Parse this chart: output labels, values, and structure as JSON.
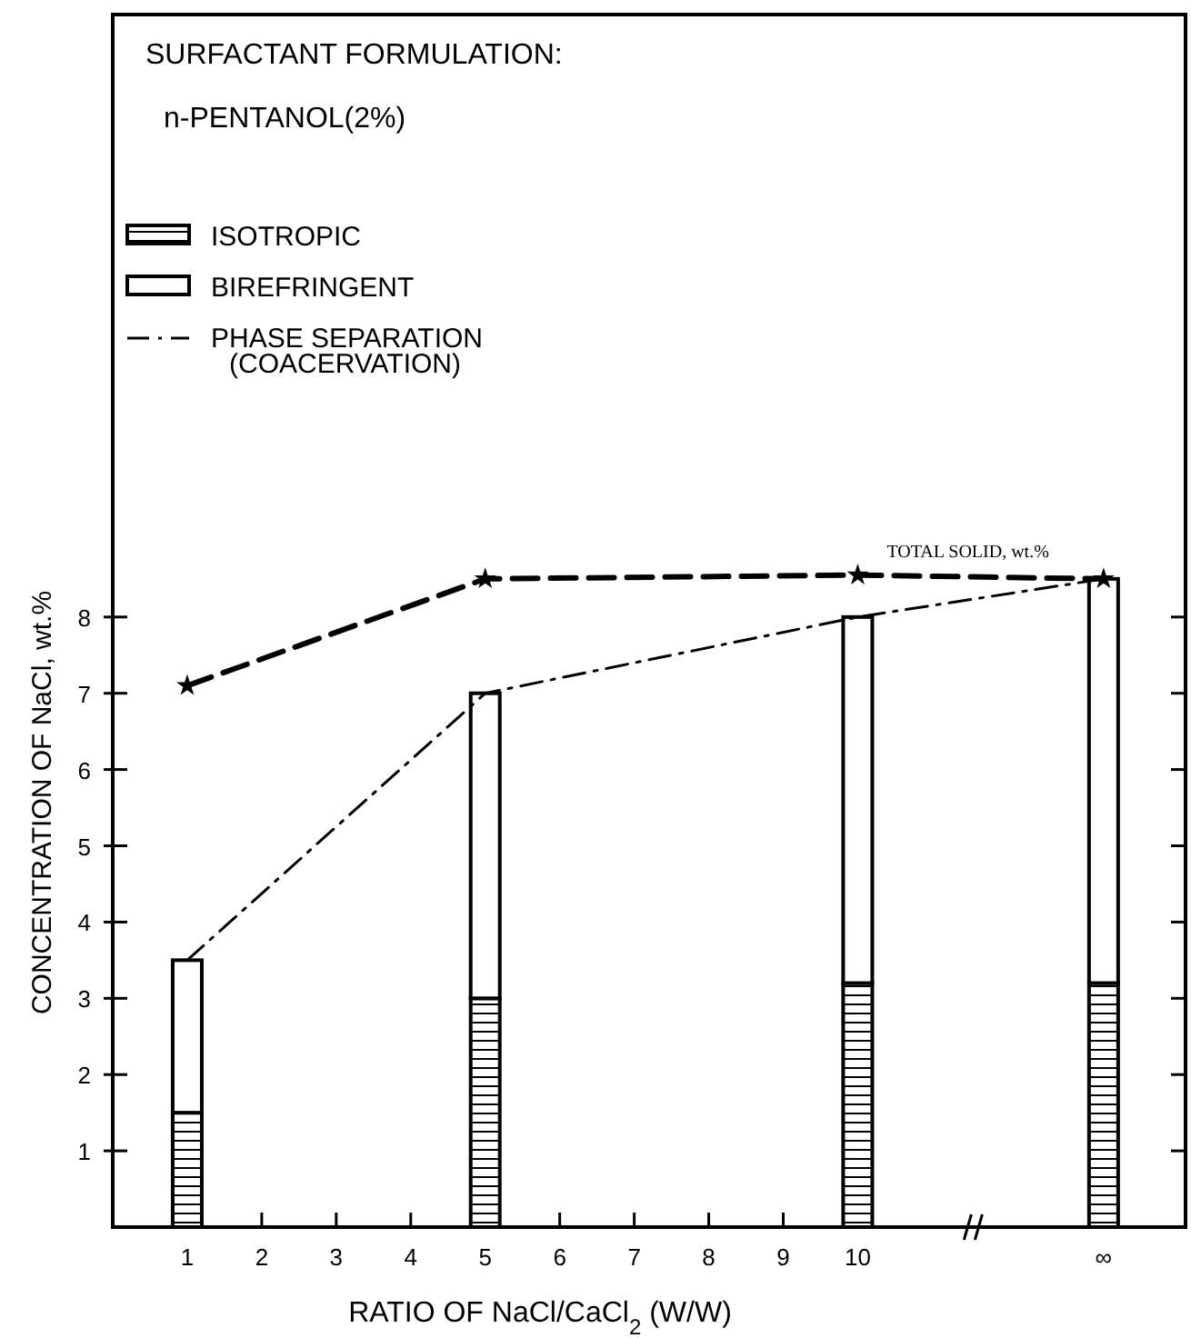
{
  "chart_data": {
    "type": "bar",
    "title": "SURFACTANT FORMULATION:",
    "subtitle": "n-PENTANOL(2%)",
    "xlabel": "RATIO OF NaCl/CaCl$_{2}$ (W/W)",
    "ylabel": "CONCENTRATION OF NaCl, wt.%",
    "x": [
      1,
      5,
      10,
      13.3
    ],
    "stacked": true,
    "legend": "top left",
    "grid": false,
    "xlim": [
      0,
      14.4
    ],
    "xticks": [
      1,
      2,
      3,
      4,
      5,
      6,
      7,
      8,
      9,
      10,
      {
        "value": 13.3,
        "label": "∞"
      }
    ],
    "ylim": [
      0,
      15.9
    ],
    "yticks": [
      1,
      2,
      3,
      4,
      5,
      6,
      7,
      8
    ],
    "series": [
      {
        "name": "ISOTROPIC",
        "color": "#000000",
        "values": [
          1.5,
          3.0,
          3.2,
          3.2
        ]
      },
      {
        "name": "BIREFRINGENT",
        "color": "#ffffff",
        "values": [
          2.0,
          4.0,
          4.8,
          5.3
        ]
      },
      {
        "name": "PHASE SEPARATION\n(COACERVATION)",
        "type": "line",
        "color": "#000000",
        "line_style": "dashdot",
        "marker": "none",
        "x": [
          1,
          5,
          10,
          13.3
        ],
        "values": [
          3.5,
          7.0,
          8.0,
          8.5
        ]
      },
      {
        "name": "TOTAL SOLID, wt.%",
        "type": "line",
        "color": "#000000",
        "line_style": "dashed",
        "marker": "star",
        "x": [
          1,
          5,
          10,
          13.3
        ],
        "values": [
          7.1,
          8.5,
          8.55,
          8.5
        ]
      }
    ]
  }
}
